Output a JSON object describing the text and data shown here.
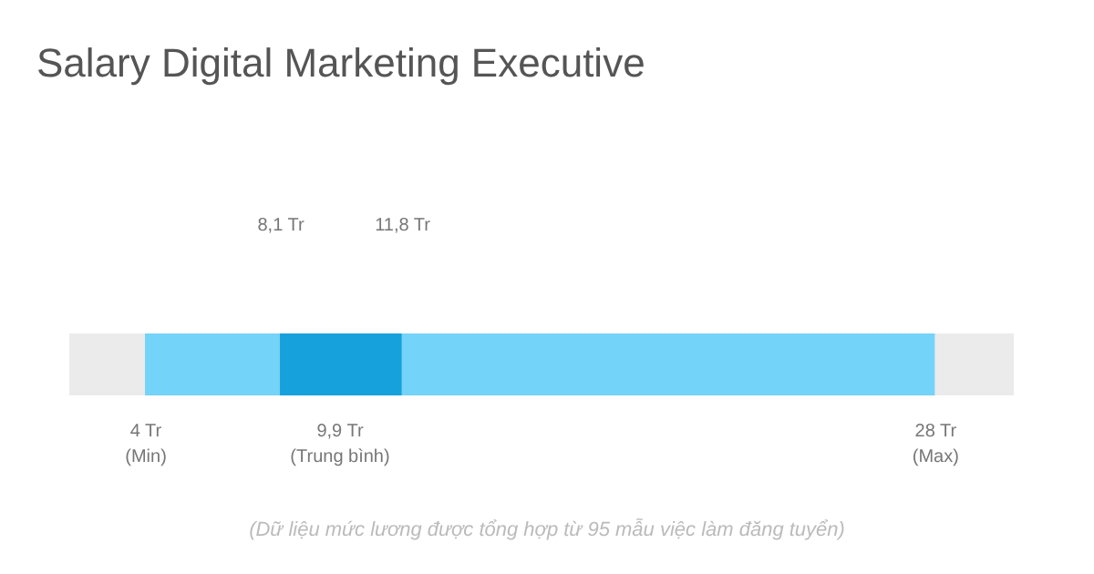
{
  "chart_data": {
    "type": "bar",
    "orientation": "horizontal",
    "title": "Salary Digital Marketing Executive",
    "categories": [
      null
    ],
    "series": [
      {
        "color": "#74d3f8",
        "base": [
          4
        ],
        "values": [
          24
        ]
      },
      {
        "color": "#16a1dc",
        "base": [
          8.1
        ],
        "values": [
          3.7
        ]
      }
    ],
    "xlim": [
      1.7,
      30.4
    ],
    "xticks": [
      {
        "value": 4,
        "label": "4 Tr\n(Min)"
      },
      {
        "value": 9.9,
        "label": "9,9 Tr\n(Trung bình)"
      },
      {
        "value": 28,
        "label": "28 Tr\n(Max)"
      }
    ],
    "x2lim": [
      1.7,
      30.4
    ],
    "x2ticks": [
      {
        "value": 8.1,
        "label": "8,1 Tr"
      },
      {
        "value": 11.8,
        "label": "11,8 Tr"
      }
    ],
    "annotations": [
      "(Dữ liệu mức lương được tổng hợp từ 95 mẫu việc làm đăng tuyển)"
    ],
    "grid": false
  }
}
